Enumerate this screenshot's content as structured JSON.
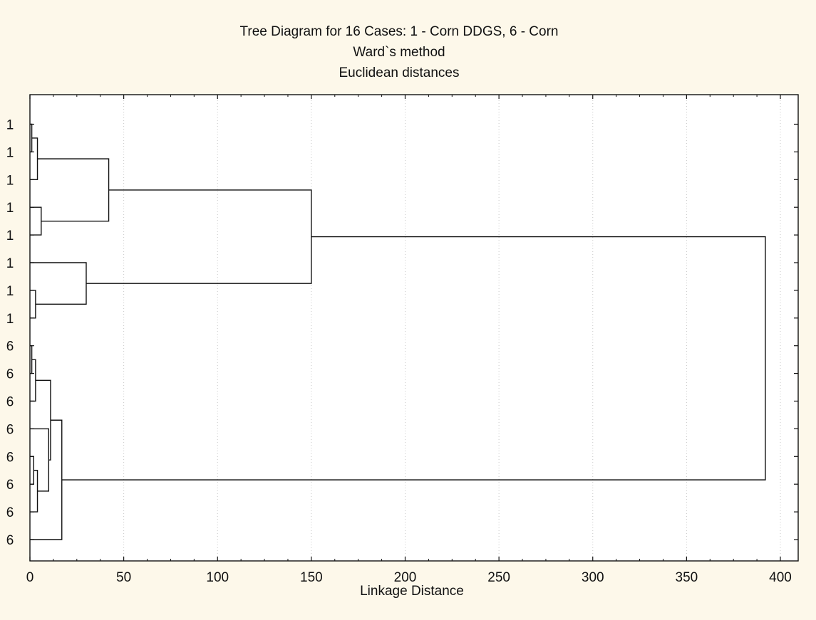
{
  "chart_data": {
    "type": "dendrogram",
    "title_lines": [
      "Tree Diagram for 16 Cases: 1 - Corn DDGS, 6 - Corn",
      "Ward`s method",
      "Euclidean distances"
    ],
    "xlabel": "Linkage Distance",
    "ylabel": "",
    "xlim": [
      0,
      400
    ],
    "x_ticks": [
      0,
      50,
      100,
      150,
      200,
      250,
      300,
      350,
      400
    ],
    "grid": true,
    "leaves": [
      "1",
      "1",
      "1",
      "1",
      "1",
      "1",
      "1",
      "1",
      "6",
      "6",
      "6",
      "6",
      "6",
      "6",
      "6",
      "6"
    ],
    "merges": [
      {
        "a": "L0",
        "b": "L1",
        "height": 1
      },
      {
        "a": "c0",
        "b": "L2",
        "height": 4
      },
      {
        "a": "L3",
        "b": "L4",
        "height": 6
      },
      {
        "a": "c1",
        "b": "c2",
        "height": 42
      },
      {
        "a": "L6",
        "b": "L7",
        "height": 3
      },
      {
        "a": "L5",
        "b": "c4",
        "height": 30
      },
      {
        "a": "c3",
        "b": "c5",
        "height": 150
      },
      {
        "a": "L8",
        "b": "L9",
        "height": 1
      },
      {
        "a": "c7",
        "b": "L10",
        "height": 3
      },
      {
        "a": "L12",
        "b": "L13",
        "height": 2
      },
      {
        "a": "c9",
        "b": "L14",
        "height": 4
      },
      {
        "a": "L11",
        "b": "c10",
        "height": 10
      },
      {
        "a": "c8",
        "b": "c11",
        "height": 11
      },
      {
        "a": "c12",
        "b": "L15",
        "height": 17
      },
      {
        "a": "c6",
        "b": "c13",
        "height": 392
      }
    ]
  }
}
